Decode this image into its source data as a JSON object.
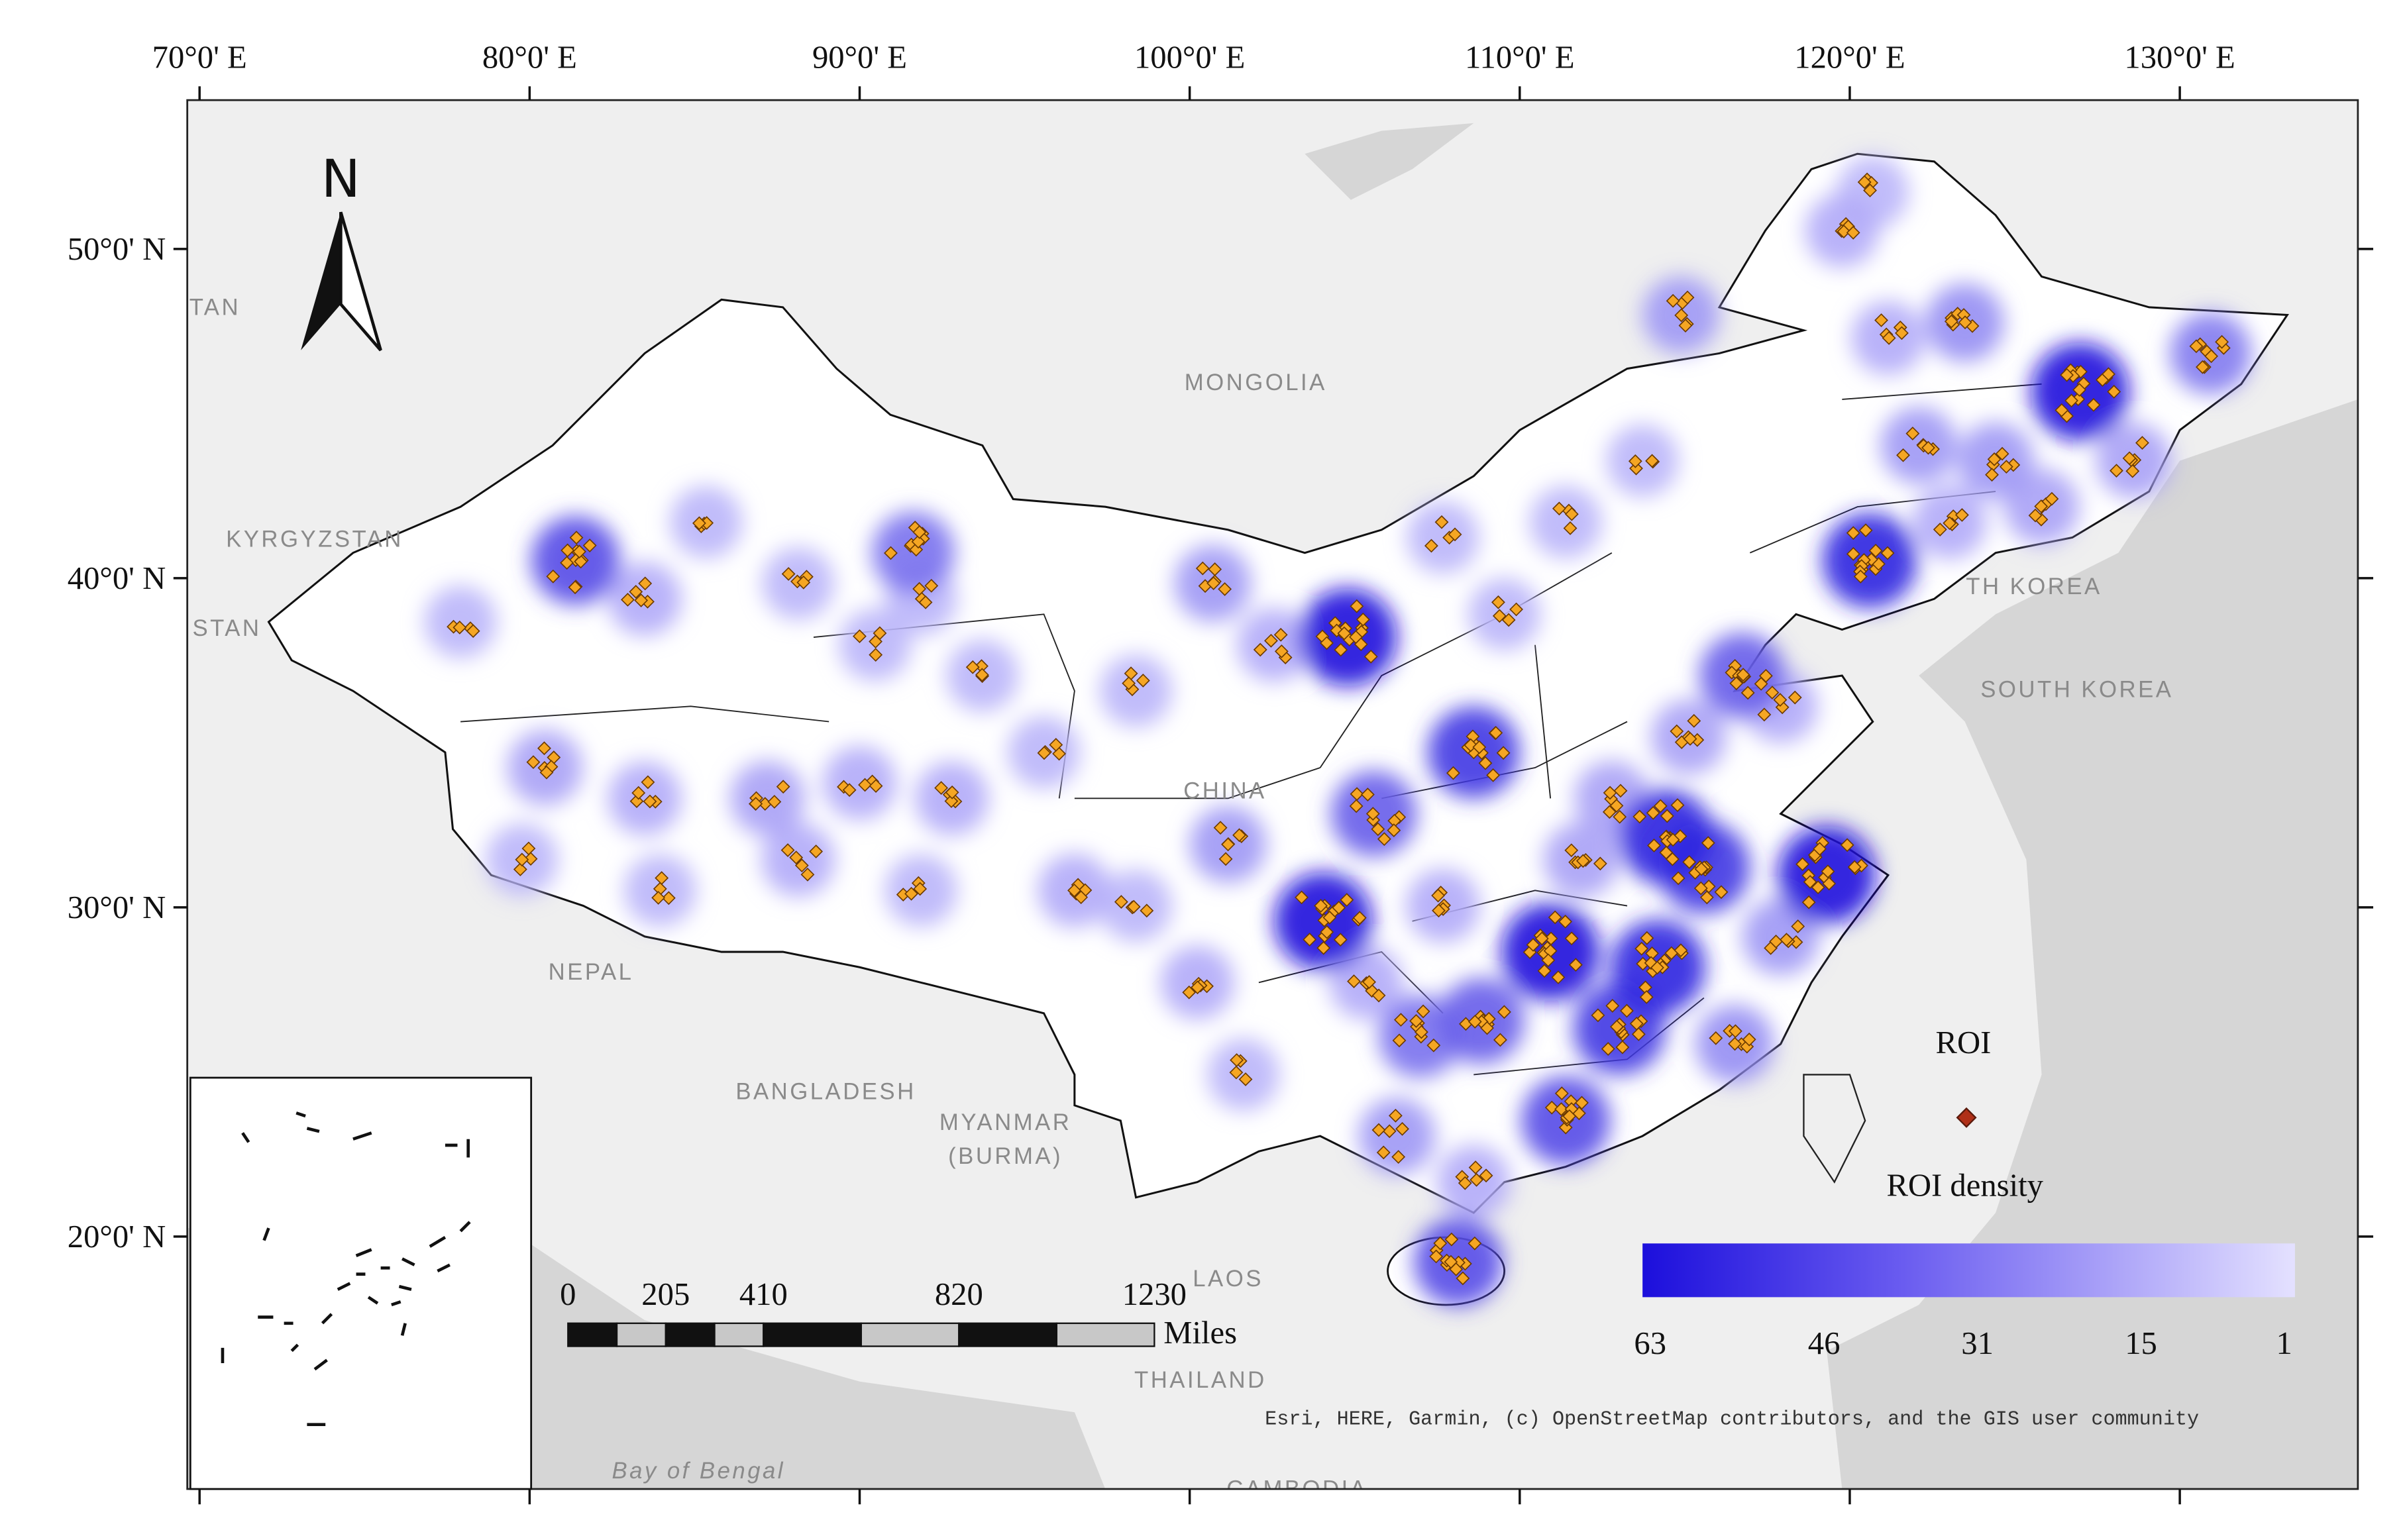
{
  "graticule": {
    "lon_ticks": [
      {
        "value": 70,
        "label": "70°0' E"
      },
      {
        "value": 80,
        "label": "80°0' E"
      },
      {
        "value": 90,
        "label": "90°0' E"
      },
      {
        "value": 100,
        "label": "100°0' E"
      },
      {
        "value": 110,
        "label": "110°0' E"
      },
      {
        "value": 120,
        "label": "120°0' E"
      },
      {
        "value": 130,
        "label": "130°0' E"
      }
    ],
    "lat_ticks": [
      {
        "value": 50,
        "label": "50°0' N"
      },
      {
        "value": 40,
        "label": "40°0' N"
      },
      {
        "value": 30,
        "label": "30°0' N"
      },
      {
        "value": 20,
        "label": "20°0' N"
      }
    ]
  },
  "north_arrow": "N",
  "map_labels": {
    "mongolia": "MONGOLIA",
    "kyrgyzstan": "KYRGYZSTAN",
    "tan": "TAN",
    "istan": "ISTAN",
    "north_korea": "TH KOREA",
    "south_korea": "SOUTH KOREA",
    "nepal": "NEPAL",
    "bangladesh": "BANGLADESH",
    "myanmar": "MYANMAR",
    "burma": "(BURMA)",
    "laos": "LAOS",
    "thailand": "THAILAND",
    "bay": "Bay of Bengal",
    "china": "CHINA",
    "cambodia": "CAMBODIA"
  },
  "legend": {
    "symbol_label": "ROI",
    "density_title": "ROI density",
    "density_ticks": [
      63,
      46,
      31,
      15,
      1
    ]
  },
  "scale_bar": {
    "ticks": [
      0,
      205,
      410,
      820,
      1230
    ],
    "unit": "Miles"
  },
  "attribution": "Esri, HERE, Garmin, (c) OpenStreetMap contributors, and the GIS user community"
}
